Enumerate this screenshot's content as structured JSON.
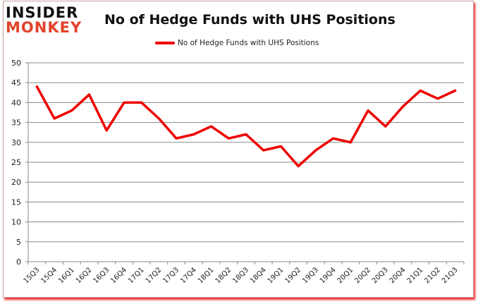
{
  "header": {
    "logo_line1": "INSIDER",
    "logo_line2": "MONKEY",
    "title": "No of Hedge Funds with UHS Positions"
  },
  "legend": {
    "label": "No of Hedge Funds with UHS Positions",
    "color": "#ee0000"
  },
  "chart_data": {
    "type": "line",
    "title": "No of Hedge Funds with UHS Positions",
    "xlabel": "",
    "ylabel": "",
    "ylim": [
      0,
      50
    ],
    "yticks": [
      0,
      5,
      10,
      15,
      20,
      25,
      30,
      35,
      40,
      45,
      50
    ],
    "grid": true,
    "legend_position": "top",
    "categories": [
      "15Q3",
      "15Q4",
      "16Q1",
      "16Q2",
      "16Q3",
      "16Q4",
      "17Q1",
      "17Q2",
      "17Q3",
      "17Q4",
      "18Q1",
      "18Q2",
      "18Q3",
      "18Q4",
      "19Q1",
      "19Q2",
      "19Q3",
      "19Q4",
      "20Q1",
      "20Q2",
      "20Q3",
      "20Q4",
      "21Q1",
      "21Q2",
      "21Q3"
    ],
    "series": [
      {
        "name": "No of Hedge Funds with UHS Positions",
        "color": "#ee0000",
        "values": [
          44,
          36,
          38,
          42,
          33,
          40,
          40,
          36,
          31,
          32,
          34,
          31,
          32,
          28,
          29,
          24,
          28,
          31,
          30,
          38,
          34,
          39,
          43,
          41,
          43
        ]
      }
    ]
  }
}
